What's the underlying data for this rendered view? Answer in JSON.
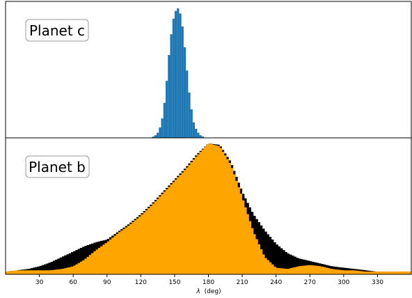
{
  "chart_data": [
    {
      "type": "histogram",
      "panel": "top",
      "label": "Planet c",
      "x_range": [
        0,
        360
      ],
      "series": [
        {
          "color": "#1f77b4",
          "bins": [
            {
              "x": 130,
              "y": 0.01
            },
            {
              "x": 132,
              "y": 0.02
            },
            {
              "x": 134,
              "y": 0.04
            },
            {
              "x": 136,
              "y": 0.08
            },
            {
              "x": 138,
              "y": 0.15
            },
            {
              "x": 140,
              "y": 0.27
            },
            {
              "x": 142,
              "y": 0.44
            },
            {
              "x": 144,
              "y": 0.64
            },
            {
              "x": 146,
              "y": 0.8
            },
            {
              "x": 148,
              "y": 0.92
            },
            {
              "x": 150,
              "y": 0.98
            },
            {
              "x": 152,
              "y": 1.0
            },
            {
              "x": 154,
              "y": 0.96
            },
            {
              "x": 156,
              "y": 0.86
            },
            {
              "x": 158,
              "y": 0.7
            },
            {
              "x": 160,
              "y": 0.52
            },
            {
              "x": 162,
              "y": 0.35
            },
            {
              "x": 164,
              "y": 0.22
            },
            {
              "x": 166,
              "y": 0.12
            },
            {
              "x": 168,
              "y": 0.07
            },
            {
              "x": 170,
              "y": 0.04
            },
            {
              "x": 172,
              "y": 0.02
            },
            {
              "x": 174,
              "y": 0.01
            }
          ]
        }
      ]
    },
    {
      "type": "histogram",
      "panel": "bottom",
      "label": "Planet b",
      "x_range": [
        0,
        360
      ],
      "xlabel_symbol": "λ",
      "xlabel_unit": "(deg)",
      "xticks": [
        "30",
        "60",
        "90",
        "120",
        "150",
        "180",
        "210",
        "240",
        "270",
        "300",
        "330"
      ],
      "series": [
        {
          "name": "",
          "color": "#000000",
          "x": [
            0,
            10,
            20,
            30,
            40,
            50,
            60,
            70,
            80,
            90,
            100,
            110,
            120,
            130,
            140,
            150,
            160,
            170,
            180,
            190,
            200,
            210,
            220,
            230,
            240,
            250,
            260,
            270,
            280,
            290,
            300,
            310,
            320,
            330,
            340,
            350,
            360
          ],
          "y": [
            0.02,
            0.03,
            0.04,
            0.06,
            0.09,
            0.13,
            0.17,
            0.21,
            0.24,
            0.26,
            0.32,
            0.38,
            0.45,
            0.53,
            0.62,
            0.71,
            0.8,
            0.9,
            0.98,
            0.97,
            0.84,
            0.62,
            0.45,
            0.33,
            0.23,
            0.16,
            0.12,
            0.1,
            0.08,
            0.06,
            0.05,
            0.04,
            0.03,
            0.02,
            0.02,
            0.02,
            0.02
          ]
        },
        {
          "name": "",
          "color": "#ffa500",
          "x": [
            0,
            10,
            20,
            30,
            40,
            50,
            60,
            70,
            80,
            90,
            100,
            110,
            120,
            130,
            140,
            150,
            160,
            170,
            180,
            190,
            200,
            210,
            220,
            230,
            240,
            250,
            260,
            270,
            280,
            290,
            300,
            310,
            320,
            330,
            340,
            350,
            360
          ],
          "y": [
            0.02,
            0.03,
            0.03,
            0.03,
            0.03,
            0.04,
            0.06,
            0.11,
            0.18,
            0.24,
            0.31,
            0.37,
            0.44,
            0.52,
            0.61,
            0.7,
            0.79,
            0.89,
            0.98,
            0.96,
            0.82,
            0.58,
            0.32,
            0.13,
            0.05,
            0.04,
            0.06,
            0.07,
            0.06,
            0.04,
            0.03,
            0.03,
            0.02,
            0.02,
            0.02,
            0.02,
            0.02
          ]
        }
      ]
    }
  ]
}
